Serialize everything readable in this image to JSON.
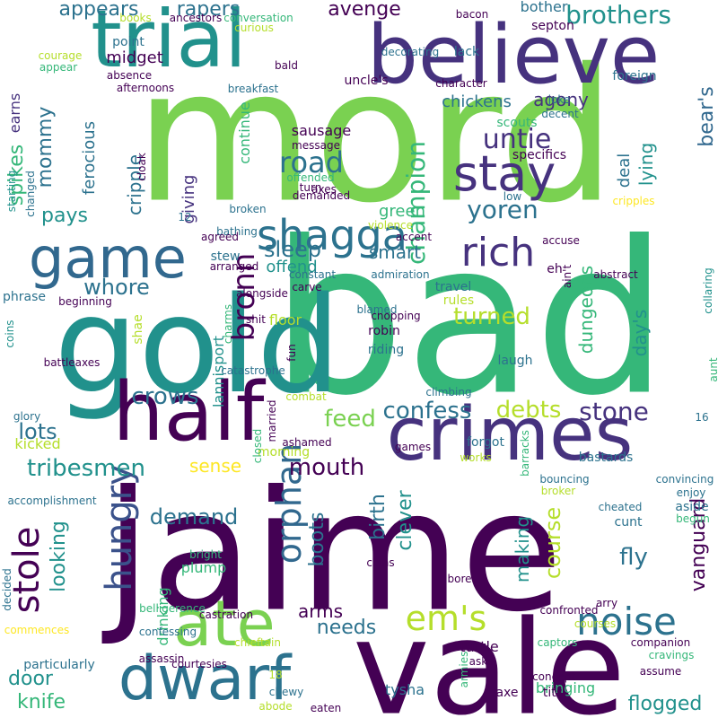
{
  "palette": {
    "background": "#ffffff",
    "dark_purple": "#440154",
    "indigo": "#3b528b",
    "blue": "#31688e",
    "teal": "#21918c",
    "green": "#35b779",
    "light_green": "#7ad151",
    "yellow_green": "#b5de2b",
    "yellow": "#fde725",
    "navy_purple": "#46327e",
    "deep_teal": "#2c728e"
  },
  "words": [
    {
      "text": "mord",
      "color": "#7ad151"
    },
    {
      "text": "bad",
      "color": "#35b779"
    },
    {
      "text": "jaime",
      "color": "#440154"
    },
    {
      "text": "gold",
      "color": "#21918c"
    },
    {
      "text": "vale",
      "color": "#440154"
    },
    {
      "text": "crimes",
      "color": "#46327e"
    },
    {
      "text": "half",
      "color": "#440154"
    },
    {
      "text": "believe",
      "color": "#46327e"
    },
    {
      "text": "trial",
      "color": "#21918c"
    },
    {
      "text": "dwarf",
      "color": "#2c728e"
    },
    {
      "text": "game",
      "color": "#31688e"
    },
    {
      "text": "ate",
      "color": "#7ad151"
    },
    {
      "text": "stay",
      "color": "#46327e"
    },
    {
      "text": "shagga",
      "color": "#2c728e"
    },
    {
      "text": "rich",
      "color": "#46327e"
    },
    {
      "text": "noise",
      "color": "#2c728e"
    },
    {
      "text": "em's",
      "color": "#b5de2b"
    },
    {
      "text": "hungry",
      "color": "#3b528b"
    },
    {
      "text": "orphan",
      "color": "#31688e"
    },
    {
      "text": "stole",
      "color": "#440154"
    },
    {
      "text": "bronn",
      "color": "#440154"
    },
    {
      "text": "road",
      "color": "#2c728e"
    },
    {
      "text": "untie",
      "color": "#46327e"
    },
    {
      "text": "yoren",
      "color": "#2c728e"
    },
    {
      "text": "brothers",
      "color": "#21918c"
    },
    {
      "text": "champion",
      "color": "#35b779"
    },
    {
      "text": "confess",
      "color": "#2c728e"
    },
    {
      "text": "stone",
      "color": "#46327e"
    },
    {
      "text": "debts",
      "color": "#b5de2b"
    },
    {
      "text": "feed",
      "color": "#7ad151"
    },
    {
      "text": "crows",
      "color": "#2c728e"
    },
    {
      "text": "tribesmen",
      "color": "#21918c"
    },
    {
      "text": "mouth",
      "color": "#440154"
    },
    {
      "text": "sleep",
      "color": "#2c728e"
    },
    {
      "text": "whore",
      "color": "#2c728e"
    },
    {
      "text": "turned",
      "color": "#b5de2b"
    },
    {
      "text": "lots",
      "color": "#2c728e"
    },
    {
      "text": "demand",
      "color": "#2c728e"
    },
    {
      "text": "fly",
      "color": "#2c728e"
    },
    {
      "text": "course",
      "color": "#b5de2b"
    },
    {
      "text": "needs",
      "color": "#2c728e"
    },
    {
      "text": "arms",
      "color": "#440154"
    },
    {
      "text": "knife",
      "color": "#35b779"
    },
    {
      "text": "door",
      "color": "#21918c"
    },
    {
      "text": "flogged",
      "color": "#21918c"
    },
    {
      "text": "vanguard",
      "color": "#440154"
    },
    {
      "text": "making",
      "color": "#21918c"
    },
    {
      "text": "clever",
      "color": "#21918c"
    },
    {
      "text": "birth",
      "color": "#2c728e"
    },
    {
      "text": "boots",
      "color": "#2c728e"
    },
    {
      "text": "looking",
      "color": "#21918c"
    },
    {
      "text": "pays",
      "color": "#21918c"
    },
    {
      "text": "mommy",
      "color": "#2c728e"
    },
    {
      "text": "spikes",
      "color": "#35b779"
    },
    {
      "text": "appears",
      "color": "#2c728e"
    },
    {
      "text": "rapers",
      "color": "#2c728e"
    },
    {
      "text": "avenge",
      "color": "#440154"
    },
    {
      "text": "agony",
      "color": "#46327e"
    },
    {
      "text": "lying",
      "color": "#21918c"
    },
    {
      "text": "bear's",
      "color": "#31688e"
    },
    {
      "text": "dungeons",
      "color": "#35b779"
    },
    {
      "text": "day's",
      "color": "#21918c"
    },
    {
      "text": "smart",
      "color": "#2c728e"
    },
    {
      "text": "green",
      "color": "#35b779"
    },
    {
      "text": "cripple",
      "color": "#2c728e"
    },
    {
      "text": "giving",
      "color": "#46327e"
    },
    {
      "text": "ferocious",
      "color": "#2c728e"
    },
    {
      "text": "midget",
      "color": "#440154"
    },
    {
      "text": "chickens",
      "color": "#2c728e"
    },
    {
      "text": "deal",
      "color": "#2c728e"
    },
    {
      "text": "offend",
      "color": "#21918c"
    },
    {
      "text": "continue",
      "color": "#35b779"
    },
    {
      "text": "sausage",
      "color": "#440154"
    },
    {
      "text": "lannisport",
      "color": "#21918c"
    },
    {
      "text": "sense",
      "color": "#fde725"
    },
    {
      "text": "kicked",
      "color": "#b5de2b"
    },
    {
      "text": "earns",
      "color": "#46327e"
    },
    {
      "text": "bother",
      "color": "#2c728e"
    },
    {
      "text": "floor",
      "color": "#b5de2b"
    },
    {
      "text": "drinking",
      "color": "#35b779"
    },
    {
      "text": "plump",
      "color": "#35b779"
    },
    {
      "text": "bringing",
      "color": "#35b779"
    },
    {
      "text": "turtle",
      "color": "#440154"
    },
    {
      "text": "tysha",
      "color": "#2c728e"
    },
    {
      "text": "laugh",
      "color": "#2c728e"
    },
    {
      "text": "travel",
      "color": "#2c728e"
    },
    {
      "text": "robin",
      "color": "#440154"
    },
    {
      "text": "riding",
      "color": "#2c728e"
    },
    {
      "text": "particularly",
      "color": "#2c728e"
    },
    {
      "text": "stew",
      "color": "#2c728e"
    },
    {
      "text": "glory",
      "color": "#2c728e"
    },
    {
      "text": "married",
      "color": "#440154"
    },
    {
      "text": "forgot",
      "color": "#2c728e"
    },
    {
      "text": "bastards",
      "color": "#2c728e"
    },
    {
      "text": "scouts",
      "color": "#35b779"
    },
    {
      "text": "specifics",
      "color": "#440154"
    },
    {
      "text": "joke",
      "color": "#2c728e"
    },
    {
      "text": "point",
      "color": "#2c728e"
    },
    {
      "text": "uncle's",
      "color": "#440154"
    },
    {
      "text": "foreign",
      "color": "#2c728e"
    },
    {
      "text": "lack",
      "color": "#2c728e"
    },
    {
      "text": "septon",
      "color": "#440154"
    },
    {
      "text": "message",
      "color": "#440154"
    },
    {
      "text": "offended",
      "color": "#35b779"
    },
    {
      "text": "turn",
      "color": "#440154"
    },
    {
      "text": "starting",
      "color": "#21918c"
    },
    {
      "text": "phrase",
      "color": "#2c728e"
    },
    {
      "text": "coins",
      "color": "#21918c"
    },
    {
      "text": "battleaxes",
      "color": "#440154"
    },
    {
      "text": "works",
      "color": "#b5de2b"
    },
    {
      "text": "games",
      "color": "#440154"
    },
    {
      "text": "enjoy",
      "color": "#2c728e"
    },
    {
      "text": "aside",
      "color": "#2c728e"
    },
    {
      "text": "cunt",
      "color": "#2c728e"
    },
    {
      "text": "axe",
      "color": "#440154"
    },
    {
      "text": "tits",
      "color": "#440154"
    },
    {
      "text": "morning",
      "color": "#b5de2b"
    },
    {
      "text": "ashamed",
      "color": "#440154"
    },
    {
      "text": "fun",
      "color": "#440154"
    },
    {
      "text": "shit",
      "color": "#440154"
    },
    {
      "text": "violence",
      "color": "#b5de2b"
    },
    {
      "text": "admiration",
      "color": "#2c728e"
    },
    {
      "text": "constant",
      "color": "#2c728e"
    },
    {
      "text": "carve",
      "color": "#440154"
    },
    {
      "text": "alongside",
      "color": "#440154"
    },
    {
      "text": "beginning",
      "color": "#440154"
    },
    {
      "text": "broken",
      "color": "#2c728e"
    },
    {
      "text": "bathing",
      "color": "#2c728e"
    },
    {
      "text": "agreed",
      "color": "#440154"
    },
    {
      "text": "arranged",
      "color": "#440154"
    },
    {
      "text": "charms",
      "color": "#35b779"
    },
    {
      "text": "shae",
      "color": "#b5de2b"
    },
    {
      "text": "chopping",
      "color": "#440154"
    },
    {
      "text": "blamed",
      "color": "#2c728e"
    },
    {
      "text": "accent",
      "color": "#440154"
    },
    {
      "text": "accuse",
      "color": "#440154"
    },
    {
      "text": "eh",
      "color": "#440154"
    },
    {
      "text": "ain't",
      "color": "#440154"
    },
    {
      "text": "abstract",
      "color": "#440154"
    },
    {
      "text": "collaring",
      "color": "#21918c"
    },
    {
      "text": "aunt",
      "color": "#35b779"
    },
    {
      "text": "rules",
      "color": "#b5de2b"
    },
    {
      "text": "climbing",
      "color": "#2c728e"
    },
    {
      "text": "catastrophe",
      "color": "#2c728e"
    },
    {
      "text": "combat",
      "color": "#b5de2b"
    },
    {
      "text": "barracks",
      "color": "#35b779"
    },
    {
      "text": "16",
      "color": "#2c728e"
    },
    {
      "text": "bouncing",
      "color": "#2c728e"
    },
    {
      "text": "broker",
      "color": "#b5de2b"
    },
    {
      "text": "convincing",
      "color": "#2c728e"
    },
    {
      "text": "begun",
      "color": "#35b779"
    },
    {
      "text": "cheated",
      "color": "#2c728e"
    },
    {
      "text": "closed",
      "color": "#35b779"
    },
    {
      "text": "accomplishment",
      "color": "#2c728e"
    },
    {
      "text": "decided",
      "color": "#2c728e"
    },
    {
      "text": "bright",
      "color": "#35b779"
    },
    {
      "text": "clans",
      "color": "#440154"
    },
    {
      "text": "bore",
      "color": "#440154"
    },
    {
      "text": "arry",
      "color": "#440154"
    },
    {
      "text": "confronted",
      "color": "#440154"
    },
    {
      "text": "belligerence",
      "color": "#35b779"
    },
    {
      "text": "castration",
      "color": "#440154"
    },
    {
      "text": "commences",
      "color": "#fde725"
    },
    {
      "text": "courses",
      "color": "#b5de2b"
    },
    {
      "text": "captors",
      "color": "#35b779"
    },
    {
      "text": "companion",
      "color": "#440154"
    },
    {
      "text": "cravings",
      "color": "#35b779"
    },
    {
      "text": "concept",
      "color": "#440154"
    },
    {
      "text": "asks",
      "color": "#440154"
    },
    {
      "text": "armies",
      "color": "#35b779"
    },
    {
      "text": "confessing",
      "color": "#2c728e"
    },
    {
      "text": "chieftain",
      "color": "#b5de2b"
    },
    {
      "text": "assassin",
      "color": "#440154"
    },
    {
      "text": "courtesies",
      "color": "#440154"
    },
    {
      "text": "18",
      "color": "#b5de2b"
    },
    {
      "text": "assume",
      "color": "#440154"
    },
    {
      "text": "chewy",
      "color": "#2c728e"
    },
    {
      "text": "abode",
      "color": "#b5de2b"
    },
    {
      "text": "eaten",
      "color": "#440154"
    },
    {
      "text": "books",
      "color": "#b5de2b"
    },
    {
      "text": "ancestors",
      "color": "#440154"
    },
    {
      "text": "conversation",
      "color": "#35b779"
    },
    {
      "text": "curious",
      "color": "#b5de2b"
    },
    {
      "text": "bacon",
      "color": "#440154"
    },
    {
      "text": "decorating",
      "color": "#2c728e"
    },
    {
      "text": "character",
      "color": "#440154"
    },
    {
      "text": "courage",
      "color": "#b5de2b"
    },
    {
      "text": "appear",
      "color": "#35b779"
    },
    {
      "text": "absence",
      "color": "#440154"
    },
    {
      "text": "afternoons",
      "color": "#440154"
    },
    {
      "text": "bald",
      "color": "#440154"
    },
    {
      "text": "breakfast",
      "color": "#2c728e"
    },
    {
      "text": "cloak",
      "color": "#440154"
    },
    {
      "text": "changed",
      "color": "#2c728e"
    },
    {
      "text": "12",
      "color": "#2c728e"
    },
    {
      "text": "axes",
      "color": "#440154"
    },
    {
      "text": "demanded",
      "color": "#440154"
    },
    {
      "text": "low",
      "color": "#2c728e"
    },
    {
      "text": "cripples",
      "color": "#fde725"
    },
    {
      "text": "decent",
      "color": "#2c728e"
    }
  ]
}
